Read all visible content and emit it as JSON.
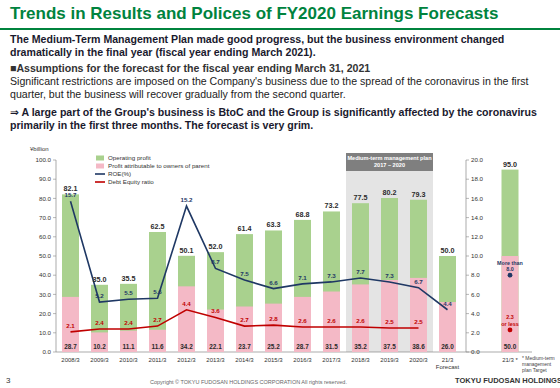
{
  "slide": {
    "title": "Trends in Results and Polices of FY2020 Earnings Forecasts",
    "intro": "The Medium-Term Management Plan made good progress, but the business environment changed dramatically in the final year (fiscal year ending March 2021).",
    "assumption_heading": "■Assumptions for the forecast for the fiscal year ending March 31, 2021",
    "assumption_text": "Significant restrictions are imposed on the Company's business due to the spread of the coronavirus in the first quarter, but the business will recover gradually from the second quarter.",
    "conclusion": "⇒ A large part of the Group's business is BtoC and the Group is significantly affected by the coronavirus primarily in the first three months. The forecast is very grim.",
    "page_number": "3",
    "copyright": "Copyright © TOKYU FUDOSAN HOLDINGS CORPORATION All rights reserved.",
    "logo": "TOKYU FUDOSAN HOLDINGS"
  },
  "chart_data": {
    "type": "bar",
    "y_label": "¥billion",
    "categories": [
      "2008/3",
      "2009/3",
      "2010/3",
      "2011/3",
      "2012/3",
      "2013/3",
      "2014/3",
      "2015/3",
      "2016/3",
      "2017/3",
      "2018/3",
      "2019/3",
      "2020/3",
      "21/3\nForecast",
      "21/3 *"
    ],
    "series": [
      {
        "name": "Operating profit",
        "type": "bar",
        "color": "#a9d18e",
        "values": [
          82.1,
          35.0,
          35.5,
          62.5,
          50.1,
          52.0,
          61.4,
          63.3,
          68.8,
          73.2,
          77.5,
          80.2,
          79.3,
          50.0,
          95.0
        ],
        "value_labels": [
          "82.1",
          "35.0",
          "35.5",
          "62.5",
          "50.1",
          "52.0",
          "61.4",
          "63.3",
          "68.8",
          "73.2",
          "77.5",
          "80.2",
          "79.3",
          "50.0",
          "95.0"
        ]
      },
      {
        "name": "Profit attributable to owners of parent",
        "type": "bar",
        "color": "#f4b9c6",
        "values": [
          28.7,
          10.2,
          11.1,
          11.6,
          34.2,
          22.1,
          23.7,
          25.2,
          28.7,
          31.5,
          35.2,
          37.5,
          38.6,
          26.0,
          50.0
        ],
        "value_labels": [
          "28.7",
          "10.2",
          "11.1",
          "11.6",
          "34.2",
          "22.1",
          "23.7",
          "25.2",
          "28.7",
          "31.5",
          "35.2",
          "37.5",
          "38.6",
          "26.0",
          "50.0"
        ]
      },
      {
        "name": "ROE(%)",
        "type": "line",
        "axis": "y2",
        "color": "#1f3864",
        "values": [
          15.7,
          5.2,
          5.5,
          5.6,
          15.2,
          8.7,
          7.5,
          6.6,
          7.1,
          7.3,
          7.7,
          7.3,
          6.7,
          4.4,
          8.0
        ],
        "value_labels": [
          "15.7",
          "5.2",
          "5.5",
          "5.6",
          "15.2",
          "8.7",
          "7.5",
          "6.6",
          "7.1",
          "7.3",
          "7.7",
          "7.3",
          "6.7",
          "4.4",
          "More than\n8.0"
        ]
      },
      {
        "name": "Debt Equity ratio",
        "type": "line",
        "axis": "y2",
        "color": "#c00000",
        "values": [
          2.1,
          2.4,
          2.4,
          2.7,
          4.4,
          3.6,
          2.7,
          2.8,
          2.6,
          2.6,
          2.6,
          2.5,
          2.5,
          null,
          2.3
        ],
        "value_labels": [
          "2.1",
          "2.4",
          "2.4",
          "2.7",
          "4.4",
          "3.6",
          "2.7",
          "2.8",
          "2.6",
          "2.6",
          "2.6",
          "2.5",
          "2.5",
          null,
          "2.3\nor less"
        ]
      }
    ],
    "ylim": [
      0,
      100
    ],
    "yticks": [
      {
        "value": 0,
        "label": "0.0"
      },
      {
        "value": 10,
        "label": "10.0"
      },
      {
        "value": 20,
        "label": "20.0"
      },
      {
        "value": 30,
        "label": "30.0"
      },
      {
        "value": 40,
        "label": "40.0"
      },
      {
        "value": 50,
        "label": "50.0"
      },
      {
        "value": 60,
        "label": "60.0"
      },
      {
        "value": 70,
        "label": "70.0"
      },
      {
        "value": 80,
        "label": "80.0"
      },
      {
        "value": 90,
        "label": "90.0"
      },
      {
        "value": 100,
        "label": "100.0"
      }
    ],
    "y2lim": [
      0,
      20
    ],
    "y2ticks": [
      {
        "value": 0,
        "label": "0.0"
      },
      {
        "value": 2,
        "label": "2.0"
      },
      {
        "value": 4,
        "label": "4.0"
      },
      {
        "value": 6,
        "label": "6.0"
      },
      {
        "value": 8,
        "label": "8.0"
      },
      {
        "value": 10,
        "label": "10.0"
      },
      {
        "value": 12,
        "label": "12.0"
      },
      {
        "value": 14,
        "label": "14.0"
      },
      {
        "value": 16,
        "label": "16.0"
      },
      {
        "value": 18,
        "label": "18.0"
      },
      {
        "value": 20,
        "label": "20.0"
      }
    ],
    "grid": false,
    "stacked": false,
    "data_labels": true,
    "legend": "top-left",
    "annotations": {
      "plan_period": "Medium-term management plan\n2017 – 2020",
      "footnote": "* Medium-term management plan Target"
    }
  }
}
